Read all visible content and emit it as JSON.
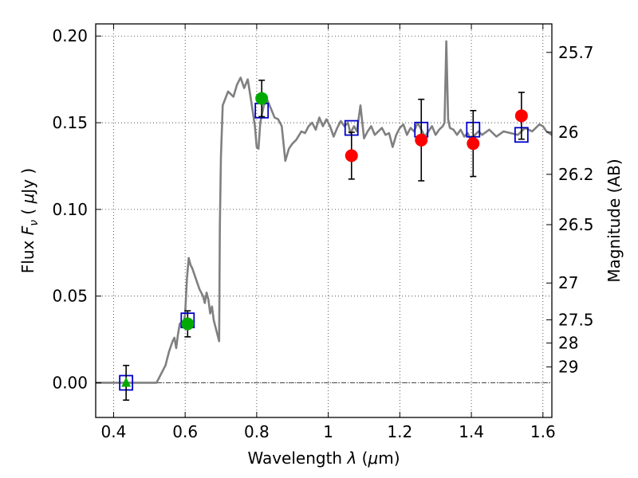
{
  "chart_data": {
    "type": "scatter",
    "xlabel": "Wavelength  λ (μm)",
    "ylabel": "Flux  F_ν  ( μJy )",
    "ylabel_right": "Magnitude (AB)",
    "xlim": [
      0.35,
      1.625
    ],
    "ylim": [
      -0.02,
      0.207
    ],
    "grid": true,
    "x_ticks": [
      {
        "value": 0.4,
        "label": "0.4"
      },
      {
        "value": 0.6,
        "label": "0.6"
      },
      {
        "value": 0.8,
        "label": "0.8"
      },
      {
        "value": 1.0,
        "label": "1"
      },
      {
        "value": 1.2,
        "label": "1.2"
      },
      {
        "value": 1.4,
        "label": "1.4"
      },
      {
        "value": 1.6,
        "label": "1.6"
      }
    ],
    "y_ticks": [
      {
        "value": 0.0,
        "label": "0.00"
      },
      {
        "value": 0.05,
        "label": "0.05"
      },
      {
        "value": 0.1,
        "label": "0.10"
      },
      {
        "value": 0.15,
        "label": "0.15"
      },
      {
        "value": 0.2,
        "label": "0.20"
      }
    ],
    "right_ticks": [
      {
        "mag": 25.7,
        "label": "25.7"
      },
      {
        "mag": 26,
        "label": "26"
      },
      {
        "mag": 26.2,
        "label": "26.2"
      },
      {
        "mag": 26.5,
        "label": "26.5"
      },
      {
        "mag": 27,
        "label": "27"
      },
      {
        "mag": 27.5,
        "label": "27.5"
      },
      {
        "mag": 28,
        "label": "28"
      },
      {
        "mag": 29,
        "label": "29"
      }
    ],
    "model_spectrum": {
      "color": "#808080",
      "points": [
        [
          0.35,
          0.0
        ],
        [
          0.52,
          0.0
        ],
        [
          0.53,
          0.004
        ],
        [
          0.545,
          0.01
        ],
        [
          0.555,
          0.018
        ],
        [
          0.565,
          0.024
        ],
        [
          0.57,
          0.026
        ],
        [
          0.575,
          0.02
        ],
        [
          0.58,
          0.028
        ],
        [
          0.585,
          0.034
        ],
        [
          0.59,
          0.035
        ],
        [
          0.595,
          0.033
        ],
        [
          0.6,
          0.04
        ],
        [
          0.605,
          0.06
        ],
        [
          0.61,
          0.072
        ],
        [
          0.615,
          0.068
        ],
        [
          0.62,
          0.066
        ],
        [
          0.63,
          0.06
        ],
        [
          0.64,
          0.054
        ],
        [
          0.65,
          0.05
        ],
        [
          0.655,
          0.046
        ],
        [
          0.66,
          0.052
        ],
        [
          0.665,
          0.048
        ],
        [
          0.67,
          0.04
        ],
        [
          0.675,
          0.044
        ],
        [
          0.68,
          0.036
        ],
        [
          0.685,
          0.032
        ],
        [
          0.69,
          0.028
        ],
        [
          0.695,
          0.024
        ],
        [
          0.697,
          0.09
        ],
        [
          0.7,
          0.13
        ],
        [
          0.705,
          0.16
        ],
        [
          0.72,
          0.168
        ],
        [
          0.735,
          0.165
        ],
        [
          0.745,
          0.172
        ],
        [
          0.755,
          0.176
        ],
        [
          0.765,
          0.17
        ],
        [
          0.775,
          0.175
        ],
        [
          0.785,
          0.162
        ],
        [
          0.795,
          0.148
        ],
        [
          0.8,
          0.136
        ],
        [
          0.805,
          0.135
        ],
        [
          0.81,
          0.15
        ],
        [
          0.82,
          0.16
        ],
        [
          0.83,
          0.163
        ],
        [
          0.84,
          0.158
        ],
        [
          0.85,
          0.153
        ],
        [
          0.86,
          0.152
        ],
        [
          0.87,
          0.148
        ],
        [
          0.88,
          0.128
        ],
        [
          0.89,
          0.135
        ],
        [
          0.9,
          0.138
        ],
        [
          0.91,
          0.14
        ],
        [
          0.925,
          0.145
        ],
        [
          0.935,
          0.144
        ],
        [
          0.945,
          0.148
        ],
        [
          0.955,
          0.15
        ],
        [
          0.965,
          0.146
        ],
        [
          0.975,
          0.153
        ],
        [
          0.985,
          0.148
        ],
        [
          0.995,
          0.152
        ],
        [
          1.005,
          0.148
        ],
        [
          1.015,
          0.142
        ],
        [
          1.025,
          0.147
        ],
        [
          1.035,
          0.151
        ],
        [
          1.045,
          0.148
        ],
        [
          1.055,
          0.15
        ],
        [
          1.062,
          0.144
        ],
        [
          1.072,
          0.148
        ],
        [
          1.08,
          0.145
        ],
        [
          1.09,
          0.16
        ],
        [
          1.1,
          0.141
        ],
        [
          1.11,
          0.145
        ],
        [
          1.12,
          0.148
        ],
        [
          1.13,
          0.143
        ],
        [
          1.14,
          0.145
        ],
        [
          1.15,
          0.147
        ],
        [
          1.16,
          0.143
        ],
        [
          1.17,
          0.144
        ],
        [
          1.18,
          0.136
        ],
        [
          1.19,
          0.143
        ],
        [
          1.2,
          0.147
        ],
        [
          1.21,
          0.149
        ],
        [
          1.22,
          0.143
        ],
        [
          1.23,
          0.147
        ],
        [
          1.24,
          0.145
        ],
        [
          1.25,
          0.15
        ],
        [
          1.26,
          0.146
        ],
        [
          1.27,
          0.142
        ],
        [
          1.28,
          0.145
        ],
        [
          1.29,
          0.148
        ],
        [
          1.3,
          0.143
        ],
        [
          1.31,
          0.146
        ],
        [
          1.32,
          0.148
        ],
        [
          1.325,
          0.15
        ],
        [
          1.33,
          0.197
        ],
        [
          1.335,
          0.152
        ],
        [
          1.34,
          0.147
        ],
        [
          1.35,
          0.146
        ],
        [
          1.36,
          0.143
        ],
        [
          1.37,
          0.146
        ],
        [
          1.38,
          0.142
        ],
        [
          1.39,
          0.144
        ],
        [
          1.4,
          0.139
        ],
        [
          1.41,
          0.143
        ],
        [
          1.42,
          0.145
        ],
        [
          1.43,
          0.143
        ],
        [
          1.45,
          0.146
        ],
        [
          1.47,
          0.142
        ],
        [
          1.49,
          0.145
        ],
        [
          1.51,
          0.144
        ],
        [
          1.53,
          0.143
        ],
        [
          1.55,
          0.147
        ],
        [
          1.57,
          0.145
        ],
        [
          1.59,
          0.149
        ],
        [
          1.6,
          0.148
        ],
        [
          1.61,
          0.145
        ],
        [
          1.625,
          0.143
        ]
      ]
    },
    "model_photometry": {
      "marker": "open-square",
      "color": "#0000cc",
      "points": [
        [
          0.435,
          0.0
        ],
        [
          0.607,
          0.036
        ],
        [
          0.814,
          0.157
        ],
        [
          1.065,
          0.147
        ],
        [
          1.26,
          0.146
        ],
        [
          1.405,
          0.146
        ],
        [
          1.54,
          0.143
        ]
      ]
    },
    "observed_photometry": [
      {
        "marker": "triangle",
        "color": "#00aa00",
        "x": 0.435,
        "y": 0.0,
        "err": 0.01
      },
      {
        "marker": "circle",
        "color": "#00aa00",
        "x": 0.607,
        "y": 0.034,
        "err": 0.0075
      },
      {
        "marker": "circle",
        "color": "#00aa00",
        "x": 0.814,
        "y": 0.164,
        "err": 0.0105
      },
      {
        "marker": "circle",
        "color": "#ff0000",
        "x": 1.065,
        "y": 0.131,
        "err": 0.0135
      },
      {
        "marker": "circle",
        "color": "#ff0000",
        "x": 1.26,
        "y": 0.14,
        "err": 0.0235
      },
      {
        "marker": "circle",
        "color": "#ff0000",
        "x": 1.405,
        "y": 0.138,
        "err": 0.019
      },
      {
        "marker": "circle",
        "color": "#ff0000",
        "x": 1.54,
        "y": 0.154,
        "err": 0.0135
      }
    ]
  }
}
